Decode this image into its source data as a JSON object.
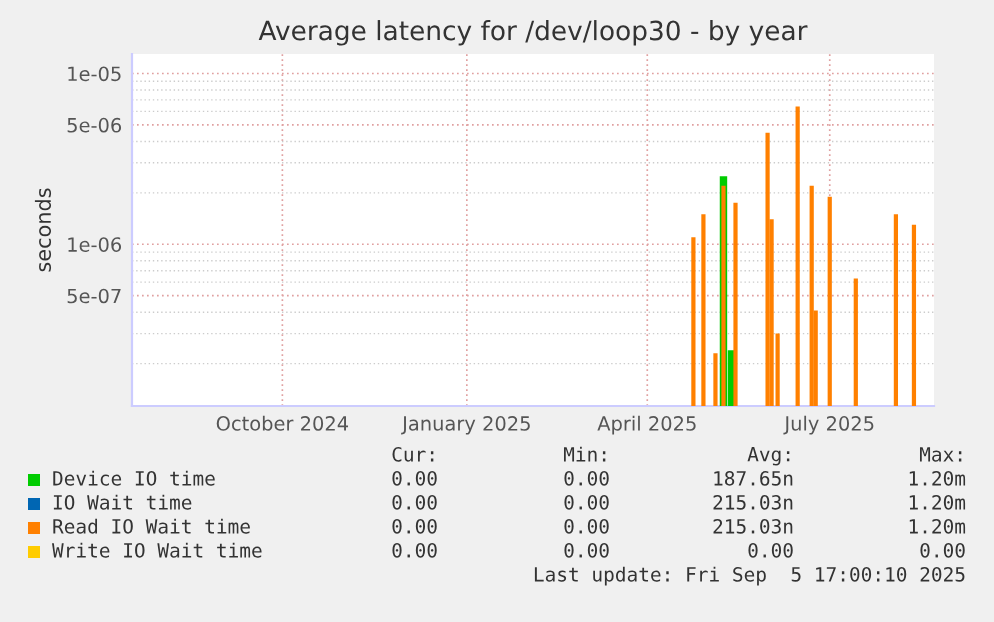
{
  "chart_data": {
    "type": "bar",
    "title": "Average latency for /dev/loop30 - by year",
    "ylabel": "seconds",
    "x": [
      "2025-05-08",
      "2025-05-13",
      "2025-05-19",
      "2025-05-23",
      "2025-05-27",
      "2025-05-29",
      "2025-06-14",
      "2025-06-16",
      "2025-06-19",
      "2025-06-29",
      "2025-07-06",
      "2025-07-08",
      "2025-07-15",
      "2025-07-28",
      "2025-08-17",
      "2025-08-26"
    ],
    "series": [
      {
        "name": "Device IO time",
        "color": "#00cc00",
        "values": [
          null,
          null,
          null,
          2.5e-06,
          2.4e-07,
          null,
          null,
          null,
          null,
          null,
          null,
          null,
          null,
          null,
          null,
          null
        ]
      },
      {
        "name": "IO Wait time",
        "color": "#0066b3",
        "values": [
          null,
          null,
          null,
          null,
          null,
          null,
          null,
          null,
          null,
          null,
          null,
          null,
          null,
          null,
          null,
          null
        ]
      },
      {
        "name": "Read IO Wait time",
        "color": "#ff8000",
        "values": [
          1.1e-06,
          1.5e-06,
          2.3e-07,
          2.2e-06,
          null,
          1.75e-06,
          4.5e-06,
          1.4e-06,
          3e-07,
          6.4e-06,
          2.2e-06,
          4.1e-07,
          1.9e-06,
          6.3e-07,
          1.5e-06,
          1.3e-06
        ]
      },
      {
        "name": "Write IO Wait time",
        "color": "#ffcc00",
        "values": [
          null,
          null,
          null,
          null,
          null,
          null,
          null,
          null,
          null,
          null,
          null,
          null,
          null,
          null,
          null,
          null
        ]
      }
    ],
    "log": "y",
    "ylim": [
      1.13e-07,
      1.3e-05
    ],
    "yticks": [
      {
        "value": 1e-05,
        "label": "1e-05"
      },
      {
        "value": 5e-06,
        "label": "5e-06"
      },
      {
        "value": 1e-06,
        "label": "1e-06"
      },
      {
        "value": 5e-07,
        "label": "5e-07"
      }
    ],
    "xlim": [
      "2024-08-01",
      "2025-09-05"
    ],
    "xticks": [
      {
        "value": "2024-10-15",
        "label": "October 2024"
      },
      {
        "value": "2025-01-15",
        "label": "January 2025"
      },
      {
        "value": "2025-04-15",
        "label": "April 2025"
      },
      {
        "value": "2025-07-15",
        "label": "July 2025"
      }
    ],
    "grid": true,
    "legend": "bottom",
    "annotations": [
      "Cur:",
      "Min:",
      "Avg:",
      "Max:",
      "0.00",
      "0.00",
      "187.65n",
      "1.20m",
      "0.00",
      "0.00",
      "215.03n",
      "1.20m",
      "0.00",
      "0.00",
      "215.03n",
      "1.20m",
      "0.00",
      "0.00",
      "0.00",
      "0.00",
      "Last update: Fri Sep  5 17:00:10 2025"
    ]
  }
}
